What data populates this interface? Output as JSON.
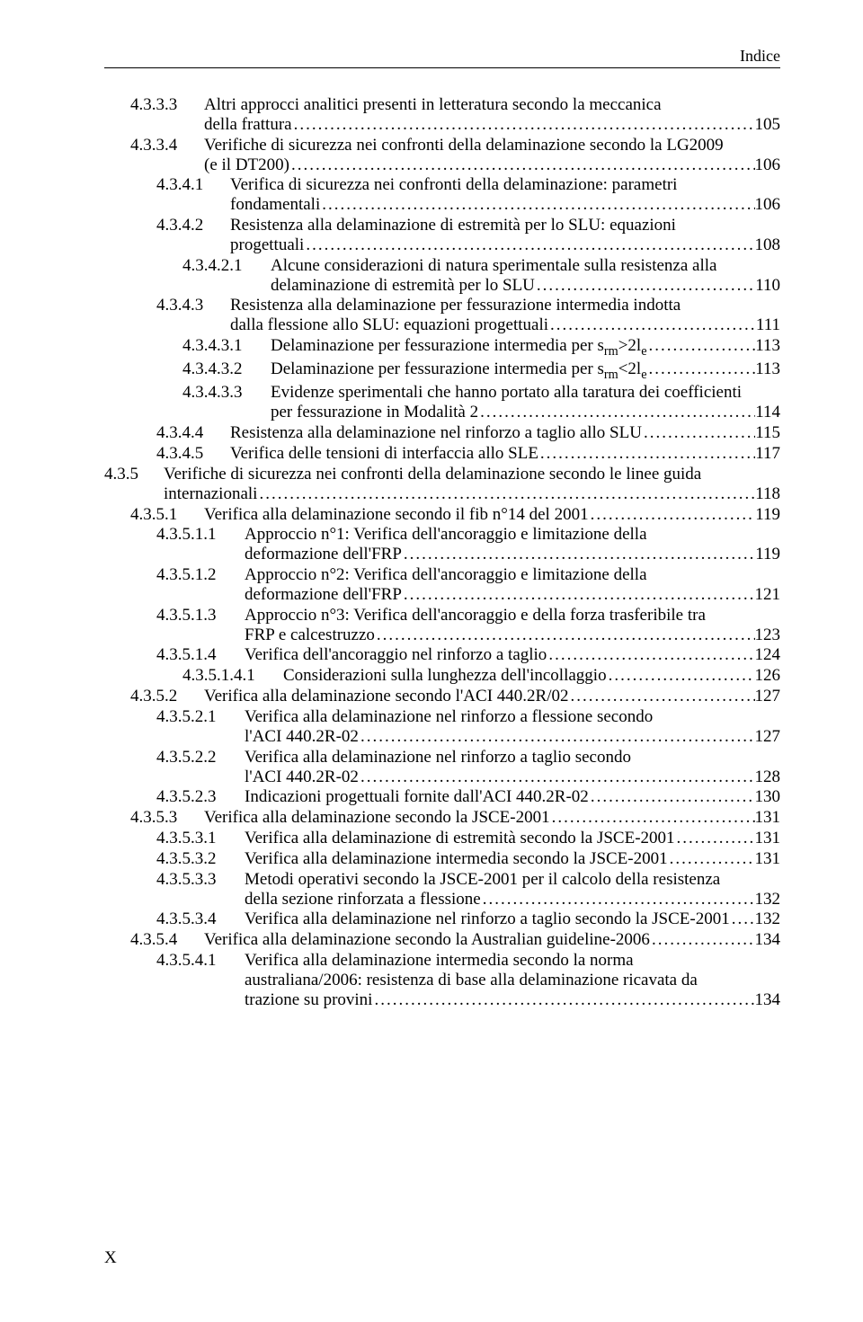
{
  "running_header": "Indice",
  "page_number": "X",
  "indent_per_level": 29,
  "base_indent": 0,
  "number_gap": 10,
  "hang_extra": 50,
  "entries": [
    {
      "level": 1,
      "num": "4.3.3.3",
      "numw": 72,
      "lines": [
        "Altri approcci analitici presenti in letteratura secondo la meccanica",
        "della frattura"
      ],
      "page": "105"
    },
    {
      "level": 1,
      "num": "4.3.3.4",
      "numw": 72,
      "lines": [
        "Verifiche di sicurezza nei confronti della delaminazione secondo la LG2009",
        "(e il DT200)"
      ],
      "page": "106"
    },
    {
      "level": 2,
      "num": "4.3.4.1",
      "numw": 72,
      "lines": [
        "Verifica di sicurezza nei confronti della delaminazione: parametri",
        "fondamentali"
      ],
      "page": "106"
    },
    {
      "level": 2,
      "num": "4.3.4.2",
      "numw": 72,
      "lines": [
        "Resistenza alla delaminazione di estremità per lo SLU: equazioni",
        "progettuali"
      ],
      "page": "108"
    },
    {
      "level": 3,
      "num": "4.3.4.2.1",
      "numw": 88,
      "lines": [
        "Alcune considerazioni di natura sperimentale sulla resistenza alla",
        "delaminazione di estremità per lo SLU"
      ],
      "page": "110"
    },
    {
      "level": 2,
      "num": "4.3.4.3",
      "numw": 72,
      "lines": [
        "Resistenza alla delaminazione per fessurazione intermedia indotta",
        "dalla flessione allo SLU: equazioni progettuali"
      ],
      "page": "111"
    },
    {
      "level": 3,
      "num": "4.3.4.3.1",
      "numw": 88,
      "lines": [
        "Delaminazione per fessurazione intermedia per s<sub class='sub'>rm</sub>>2l<sub class='sub'>e</sub>"
      ],
      "page": "113"
    },
    {
      "level": 3,
      "num": "4.3.4.3.2",
      "numw": 88,
      "lines": [
        "Delaminazione per fessurazione intermedia per s<sub class='sub'>rm</sub><2l<sub class='sub'>e</sub>"
      ],
      "page": "113"
    },
    {
      "level": 3,
      "num": "4.3.4.3.3",
      "numw": 88,
      "lines": [
        "Evidenze sperimentali che hanno portato alla taratura dei coefficienti",
        "per fessurazione in Modalità 2"
      ],
      "page": "114"
    },
    {
      "level": 2,
      "num": "4.3.4.4",
      "numw": 72,
      "lines": [
        "Resistenza alla delaminazione nel rinforzo a taglio allo SLU"
      ],
      "page": "115"
    },
    {
      "level": 2,
      "num": "4.3.4.5",
      "numw": 72,
      "lines": [
        "Verifica delle tensioni di interfaccia allo SLE"
      ],
      "page": "117"
    },
    {
      "level": 0,
      "num": "4.3.5",
      "numw": 56,
      "lines": [
        "Verifiche di sicurezza nei confronti della delaminazione secondo le linee guida",
        "internazionali"
      ],
      "page": "118"
    },
    {
      "level": 1,
      "num": "4.3.5.1",
      "numw": 72,
      "lines": [
        "Verifica alla delaminazione secondo il fib n°14 del 2001"
      ],
      "page": "119"
    },
    {
      "level": 2,
      "num": "4.3.5.1.1",
      "numw": 88,
      "lines": [
        "Approccio n°1: Verifica dell'ancoraggio e limitazione della",
        "deformazione dell'FRP"
      ],
      "page": "119"
    },
    {
      "level": 2,
      "num": "4.3.5.1.2",
      "numw": 88,
      "lines": [
        "Approccio n°2: Verifica dell'ancoraggio e limitazione della",
        "deformazione dell'FRP"
      ],
      "page": "121"
    },
    {
      "level": 2,
      "num": "4.3.5.1.3",
      "numw": 88,
      "lines": [
        "Approccio n°3: Verifica dell'ancoraggio e della forza trasferibile tra",
        "FRP e calcestruzzo"
      ],
      "page": "123"
    },
    {
      "level": 2,
      "num": "4.3.5.1.4",
      "numw": 88,
      "lines": [
        "Verifica dell'ancoraggio nel rinforzo a taglio"
      ],
      "page": "124"
    },
    {
      "level": 3,
      "num": "4.3.5.1.4.1",
      "numw": 102,
      "lines": [
        "Considerazioni sulla lunghezza dell'incollaggio"
      ],
      "page": "126"
    },
    {
      "level": 1,
      "num": "4.3.5.2",
      "numw": 72,
      "lines": [
        "Verifica alla delaminazione secondo l'ACI 440.2R/02"
      ],
      "page": "127"
    },
    {
      "level": 2,
      "num": "4.3.5.2.1",
      "numw": 88,
      "lines": [
        "Verifica alla delaminazione nel rinforzo a flessione secondo",
        "l'ACI 440.2R-02"
      ],
      "page": "127"
    },
    {
      "level": 2,
      "num": "4.3.5.2.2",
      "numw": 88,
      "lines": [
        "Verifica alla delaminazione nel rinforzo a taglio secondo",
        "l'ACI 440.2R-02"
      ],
      "page": "128"
    },
    {
      "level": 2,
      "num": "4.3.5.2.3",
      "numw": 88,
      "lines": [
        "Indicazioni progettuali fornite dall'ACI 440.2R-02"
      ],
      "page": "130"
    },
    {
      "level": 1,
      "num": "4.3.5.3",
      "numw": 72,
      "lines": [
        "Verifica alla delaminazione secondo la JSCE-2001"
      ],
      "page": "131"
    },
    {
      "level": 2,
      "num": "4.3.5.3.1",
      "numw": 88,
      "lines": [
        "Verifica alla delaminazione di estremità secondo la JSCE-2001"
      ],
      "page": "131"
    },
    {
      "level": 2,
      "num": "4.3.5.3.2",
      "numw": 88,
      "lines": [
        "Verifica alla delaminazione intermedia secondo la JSCE-2001"
      ],
      "page": "131"
    },
    {
      "level": 2,
      "num": "4.3.5.3.3",
      "numw": 88,
      "lines": [
        "Metodi operativi secondo la JSCE-2001 per il calcolo della resistenza",
        "della sezione rinforzata a flessione"
      ],
      "page": "132"
    },
    {
      "level": 2,
      "num": "4.3.5.3.4",
      "numw": 88,
      "lines": [
        "Verifica alla delaminazione nel rinforzo a taglio secondo la JSCE-2001"
      ],
      "page": "132"
    },
    {
      "level": 1,
      "num": "4.3.5.4",
      "numw": 72,
      "lines": [
        "Verifica alla delaminazione secondo la Australian guideline-2006"
      ],
      "page": "134"
    },
    {
      "level": 2,
      "num": "4.3.5.4.1",
      "numw": 88,
      "lines": [
        "Verifica alla delaminazione intermedia secondo la norma",
        "australiana/2006: resistenza di base alla delaminazione ricavata da",
        "trazione su provini"
      ],
      "page": "134"
    }
  ]
}
